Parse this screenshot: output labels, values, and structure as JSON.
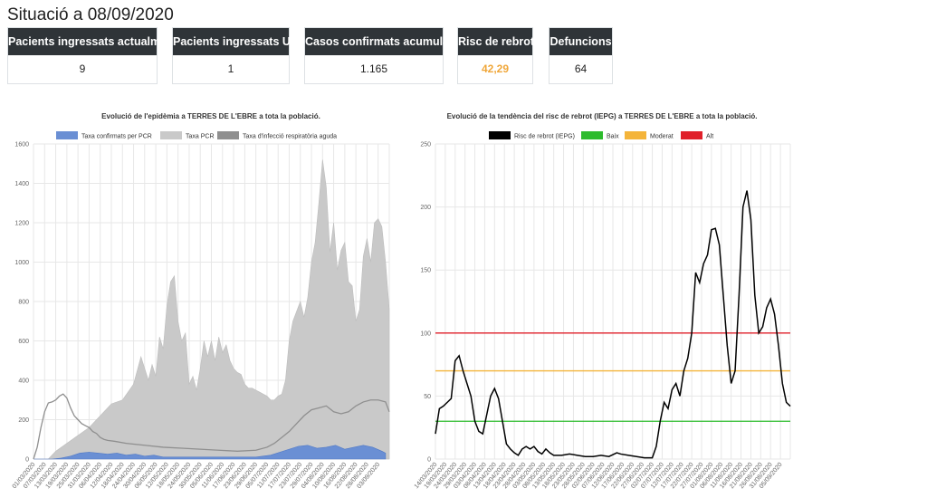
{
  "page": {
    "title": "Situació a 08/09/2020"
  },
  "kpis": [
    {
      "label": "Pacients ingressats actualment",
      "value": "9"
    },
    {
      "label": "Pacients ingressats UCI",
      "value": "1"
    },
    {
      "label": "Casos confirmats acumulats",
      "value": "1.165"
    },
    {
      "label": "Risc de rebrot",
      "value": "42,29"
    },
    {
      "label": "Defuncions",
      "value": "64"
    }
  ],
  "colors": {
    "header_bg": "#2f3438",
    "risk_value": "#f0a73a",
    "blue": "#6a8fd4",
    "gray_light": "#c9c9c9",
    "gray_dark": "#8f8f8f",
    "black": "#000000",
    "green": "#2dbb2d",
    "orange": "#f4b43a",
    "red": "#e0202a"
  },
  "chart_data": [
    {
      "type": "area",
      "title": "Evolució de l'epidèmia a TERRES DE L'EBRE a tota la població.",
      "ylim": [
        0,
        1600
      ],
      "yticks": [
        "0",
        "200",
        "400",
        "600",
        "800",
        "1000",
        "1200",
        "1400",
        "1600"
      ],
      "xticks": [
        "01/03/2020",
        "07/03/2020",
        "13/03/2020",
        "19/03/2020",
        "25/03/2020",
        "31/03/2020",
        "06/04/2020",
        "12/04/2020",
        "18/04/2020",
        "24/04/2020",
        "30/04/2020",
        "06/05/2020",
        "12/05/2020",
        "18/05/2020",
        "24/05/2020",
        "30/05/2020",
        "05/06/2020",
        "11/06/2020",
        "17/06/2020",
        "23/06/2020",
        "29/06/2020",
        "05/07/2020",
        "11/07/2020",
        "17/07/2020",
        "23/07/2020",
        "29/07/2020",
        "04/08/2020",
        "10/08/2020",
        "16/08/2020",
        "22/08/2020",
        "28/08/2020",
        "03/09/2020"
      ],
      "x_days": [
        0,
        190
      ],
      "series": [
        {
          "name": "Taxa confirmats per PCR",
          "points": [
            [
              0,
              0
            ],
            [
              10,
              0
            ],
            [
              15,
              5
            ],
            [
              20,
              15
            ],
            [
              25,
              30
            ],
            [
              30,
              35
            ],
            [
              35,
              30
            ],
            [
              40,
              25
            ],
            [
              45,
              30
            ],
            [
              50,
              20
            ],
            [
              55,
              25
            ],
            [
              60,
              15
            ],
            [
              65,
              20
            ],
            [
              70,
              10
            ],
            [
              80,
              10
            ],
            [
              90,
              10
            ],
            [
              100,
              10
            ],
            [
              110,
              10
            ],
            [
              120,
              10
            ],
            [
              128,
              20
            ],
            [
              133,
              35
            ],
            [
              138,
              50
            ],
            [
              143,
              65
            ],
            [
              148,
              70
            ],
            [
              153,
              55
            ],
            [
              158,
              60
            ],
            [
              163,
              70
            ],
            [
              168,
              50
            ],
            [
              173,
              60
            ],
            [
              178,
              70
            ],
            [
              183,
              60
            ],
            [
              188,
              40
            ],
            [
              190,
              30
            ]
          ]
        },
        {
          "name": "Taxa PCR",
          "points": [
            [
              0,
              0
            ],
            [
              8,
              0
            ],
            [
              12,
              40
            ],
            [
              18,
              80
            ],
            [
              24,
              120
            ],
            [
              30,
              160
            ],
            [
              36,
              220
            ],
            [
              42,
              280
            ],
            [
              48,
              300
            ],
            [
              54,
              380
            ],
            [
              58,
              520
            ],
            [
              62,
              400
            ],
            [
              64,
              480
            ],
            [
              66,
              420
            ],
            [
              68,
              620
            ],
            [
              70,
              560
            ],
            [
              72,
              780
            ],
            [
              74,
              900
            ],
            [
              76,
              930
            ],
            [
              78,
              700
            ],
            [
              80,
              600
            ],
            [
              82,
              640
            ],
            [
              84,
              380
            ],
            [
              86,
              420
            ],
            [
              88,
              350
            ],
            [
              90,
              460
            ],
            [
              92,
              600
            ],
            [
              94,
              520
            ],
            [
              96,
              600
            ],
            [
              98,
              500
            ],
            [
              100,
              620
            ],
            [
              102,
              540
            ],
            [
              104,
              580
            ],
            [
              106,
              500
            ],
            [
              108,
              460
            ],
            [
              110,
              440
            ],
            [
              112,
              430
            ],
            [
              114,
              380
            ],
            [
              116,
              360
            ],
            [
              118,
              360
            ],
            [
              120,
              350
            ],
            [
              122,
              340
            ],
            [
              124,
              330
            ],
            [
              126,
              320
            ],
            [
              128,
              300
            ],
            [
              130,
              300
            ],
            [
              132,
              320
            ],
            [
              134,
              330
            ],
            [
              136,
              400
            ],
            [
              138,
              600
            ],
            [
              140,
              700
            ],
            [
              142,
              750
            ],
            [
              144,
              800
            ],
            [
              146,
              720
            ],
            [
              148,
              820
            ],
            [
              150,
              1000
            ],
            [
              152,
              1100
            ],
            [
              154,
              1300
            ],
            [
              156,
              1520
            ],
            [
              158,
              1380
            ],
            [
              160,
              1050
            ],
            [
              162,
              1200
            ],
            [
              164,
              960
            ],
            [
              166,
              1060
            ],
            [
              168,
              1100
            ],
            [
              170,
              900
            ],
            [
              172,
              880
            ],
            [
              174,
              700
            ],
            [
              176,
              760
            ],
            [
              178,
              1030
            ],
            [
              180,
              1120
            ],
            [
              182,
              1000
            ],
            [
              184,
              1200
            ],
            [
              186,
              1220
            ],
            [
              188,
              1180
            ],
            [
              190,
              1000
            ],
            [
              192,
              760
            ]
          ]
        },
        {
          "name": "Taxa d'infecció respiratòria aguda",
          "points": [
            [
              0,
              0
            ],
            [
              2,
              60
            ],
            [
              4,
              160
            ],
            [
              6,
              240
            ],
            [
              8,
              285
            ],
            [
              10,
              290
            ],
            [
              12,
              300
            ],
            [
              14,
              320
            ],
            [
              16,
              330
            ],
            [
              18,
              310
            ],
            [
              20,
              260
            ],
            [
              22,
              220
            ],
            [
              24,
              200
            ],
            [
              26,
              180
            ],
            [
              28,
              170
            ],
            [
              30,
              160
            ],
            [
              32,
              140
            ],
            [
              34,
              130
            ],
            [
              36,
              110
            ],
            [
              38,
              100
            ],
            [
              40,
              95
            ],
            [
              44,
              90
            ],
            [
              50,
              80
            ],
            [
              60,
              70
            ],
            [
              70,
              60
            ],
            [
              80,
              55
            ],
            [
              90,
              50
            ],
            [
              100,
              45
            ],
            [
              110,
              40
            ],
            [
              120,
              45
            ],
            [
              126,
              60
            ],
            [
              130,
              80
            ],
            [
              134,
              110
            ],
            [
              138,
              140
            ],
            [
              142,
              180
            ],
            [
              146,
              220
            ],
            [
              150,
              250
            ],
            [
              154,
              260
            ],
            [
              158,
              270
            ],
            [
              162,
              240
            ],
            [
              166,
              230
            ],
            [
              170,
              240
            ],
            [
              174,
              270
            ],
            [
              178,
              290
            ],
            [
              182,
              300
            ],
            [
              186,
              300
            ],
            [
              190,
              290
            ],
            [
              192,
              240
            ]
          ]
        }
      ],
      "legend": [
        "Taxa confirmats per PCR",
        "Taxa PCR",
        "Taxa d'infecció respiratòria aguda"
      ]
    },
    {
      "type": "line",
      "title": "Evolució de la tendència del risc de rebrot (IEPG) a TERRES DE L'EBRE a tota la població.",
      "ylim": [
        0,
        250
      ],
      "yticks": [
        "0",
        "50",
        "100",
        "150",
        "200",
        "250"
      ],
      "xticks": [
        "14/03/2020",
        "19/03/2020",
        "24/03/2020",
        "29/03/2020",
        "03/04/2020",
        "08/04/2020",
        "13/04/2020",
        "18/04/2020",
        "23/04/2020",
        "28/04/2020",
        "03/05/2020",
        "08/05/2020",
        "13/05/2020",
        "18/05/2020",
        "23/05/2020",
        "28/05/2020",
        "02/06/2020",
        "07/06/2020",
        "12/06/2020",
        "17/06/2020",
        "22/06/2020",
        "27/06/2020",
        "02/07/2020",
        "07/07/2020",
        "12/07/2020",
        "17/07/2020",
        "22/07/2020",
        "27/07/2020",
        "01/08/2020",
        "06/08/2020",
        "11/08/2020",
        "16/08/2020",
        "21/08/2020",
        "26/08/2020",
        "31/08/2020",
        "05/09/2020"
      ],
      "x_days": [
        0,
        180
      ],
      "legend": [
        "Risc de rebrot (IEPG)",
        "Baix",
        "Moderat",
        "Alt"
      ],
      "thresholds": {
        "Baix": 30,
        "Moderat": 70,
        "Alt": 100
      },
      "series": [
        {
          "name": "Risc de rebrot (IEPG)",
          "points": [
            [
              0,
              20
            ],
            [
              2,
              40
            ],
            [
              4,
              42
            ],
            [
              6,
              45
            ],
            [
              8,
              48
            ],
            [
              10,
              78
            ],
            [
              12,
              82
            ],
            [
              14,
              70
            ],
            [
              16,
              60
            ],
            [
              18,
              50
            ],
            [
              20,
              30
            ],
            [
              22,
              22
            ],
            [
              24,
              20
            ],
            [
              26,
              35
            ],
            [
              28,
              50
            ],
            [
              30,
              56
            ],
            [
              32,
              48
            ],
            [
              34,
              30
            ],
            [
              36,
              12
            ],
            [
              38,
              8
            ],
            [
              40,
              5
            ],
            [
              42,
              3
            ],
            [
              44,
              8
            ],
            [
              46,
              10
            ],
            [
              48,
              8
            ],
            [
              50,
              10
            ],
            [
              52,
              6
            ],
            [
              54,
              4
            ],
            [
              56,
              8
            ],
            [
              58,
              5
            ],
            [
              60,
              3
            ],
            [
              64,
              3
            ],
            [
              68,
              4
            ],
            [
              72,
              3
            ],
            [
              76,
              2
            ],
            [
              80,
              2
            ],
            [
              84,
              3
            ],
            [
              88,
              2
            ],
            [
              92,
              5
            ],
            [
              94,
              4
            ],
            [
              98,
              3
            ],
            [
              102,
              2
            ],
            [
              106,
              1
            ],
            [
              110,
              1
            ],
            [
              112,
              10
            ],
            [
              114,
              30
            ],
            [
              116,
              45
            ],
            [
              118,
              40
            ],
            [
              120,
              55
            ],
            [
              122,
              60
            ],
            [
              124,
              50
            ],
            [
              126,
              70
            ],
            [
              128,
              80
            ],
            [
              130,
              100
            ],
            [
              132,
              148
            ],
            [
              134,
              140
            ],
            [
              136,
              155
            ],
            [
              138,
              162
            ],
            [
              140,
              182
            ],
            [
              142,
              183
            ],
            [
              144,
              170
            ],
            [
              146,
              130
            ],
            [
              148,
              90
            ],
            [
              150,
              60
            ],
            [
              152,
              70
            ],
            [
              154,
              130
            ],
            [
              156,
              200
            ],
            [
              158,
              213
            ],
            [
              160,
              190
            ],
            [
              162,
              130
            ],
            [
              164,
              100
            ],
            [
              166,
              105
            ],
            [
              168,
              120
            ],
            [
              170,
              127
            ],
            [
              172,
              115
            ],
            [
              174,
              90
            ],
            [
              176,
              60
            ],
            [
              178,
              45
            ],
            [
              180,
              42
            ]
          ]
        }
      ]
    }
  ]
}
